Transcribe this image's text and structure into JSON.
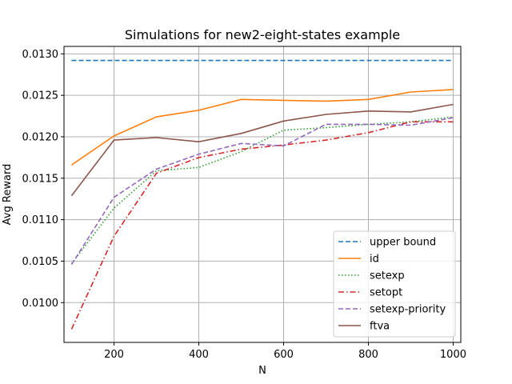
{
  "chart_data": {
    "type": "line",
    "title": "Simulations for new2-eight-states example",
    "xlabel": "N",
    "ylabel": "Avg Reward",
    "xlim": [
      82,
      1018
    ],
    "ylim": [
      0.00952,
      0.01309
    ],
    "xticks": [
      200,
      400,
      600,
      800,
      1000
    ],
    "yticks": [
      0.01,
      0.0105,
      0.011,
      0.0115,
      0.012,
      0.0125,
      0.013
    ],
    "ytick_labels": [
      "0.0100",
      "0.0105",
      "0.0110",
      "0.0115",
      "0.0120",
      "0.0125",
      "0.0130"
    ],
    "grid": true,
    "legend_position": "lower-right",
    "x": [
      100,
      200,
      300,
      400,
      500,
      600,
      700,
      800,
      900,
      1000
    ],
    "series": [
      {
        "name": "upper bound",
        "color": "#1f77b4",
        "dash": "dashed",
        "values": [
          0.01292,
          0.01292,
          0.01292,
          0.01292,
          0.01292,
          0.01292,
          0.01292,
          0.01292,
          0.01292,
          0.01292
        ]
      },
      {
        "name": "id",
        "color": "#ff7f0e",
        "dash": "solid",
        "values": [
          0.01166,
          0.01201,
          0.01224,
          0.01232,
          0.01245,
          0.01244,
          0.01243,
          0.01245,
          0.01254,
          0.01257
        ]
      },
      {
        "name": "setexp",
        "color": "#2ca02c",
        "dash": "dotted",
        "values": [
          0.01047,
          0.01114,
          0.01159,
          0.01163,
          0.01182,
          0.01208,
          0.01211,
          0.01215,
          0.01218,
          0.01224
        ]
      },
      {
        "name": "setopt",
        "color": "#d62728",
        "dash": "dashdot",
        "values": [
          0.00968,
          0.0108,
          0.01156,
          0.01175,
          0.01185,
          0.0119,
          0.01196,
          0.01205,
          0.01218,
          0.01218
        ]
      },
      {
        "name": "setexp-priority",
        "color": "#9467bd",
        "dash": "dashed",
        "values": [
          0.01046,
          0.01127,
          0.01161,
          0.01179,
          0.01192,
          0.01189,
          0.01215,
          0.01215,
          0.01214,
          0.01223
        ]
      },
      {
        "name": "ftva",
        "color": "#8c564b",
        "dash": "solid",
        "values": [
          0.01129,
          0.01196,
          0.01199,
          0.01194,
          0.01204,
          0.01219,
          0.01227,
          0.01231,
          0.0123,
          0.01239
        ]
      }
    ]
  }
}
